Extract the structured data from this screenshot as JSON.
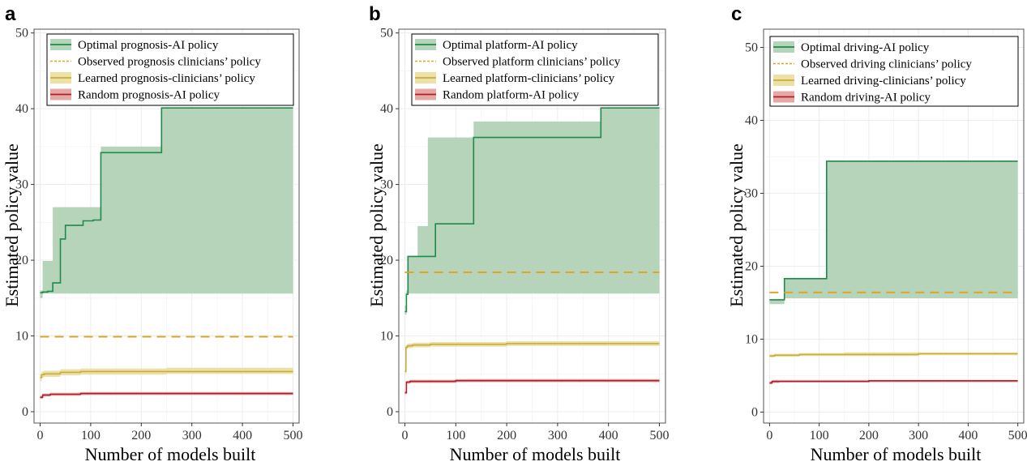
{
  "figure": {
    "colors": {
      "optimal_line": "#1e8a4c",
      "optimal_band": "#b5d4b9",
      "observed": "#e0a526",
      "learned_line": "#c8ad3c",
      "learned_band": "#ece0a6",
      "random_line": "#b0202a",
      "random_band": "#e6a8a4",
      "grid": "#ececec",
      "frame": "#555555"
    }
  },
  "chart_data": [
    {
      "type": "line",
      "panel_label": "a",
      "xlabel": "Number of models built",
      "ylabel": "Estimated policy value",
      "xlim": [
        -12,
        512
      ],
      "ylim": [
        -1.5,
        50.5
      ],
      "x_ticks": [
        0,
        100,
        200,
        300,
        400,
        500
      ],
      "y_ticks": [
        0,
        10,
        20,
        30,
        40,
        50
      ],
      "grid": true,
      "legend_position": "top-left",
      "series": [
        {
          "name": "Optimal prognosis-AI policy",
          "kind": "step_band",
          "x": [
            0,
            5,
            15,
            25,
            40,
            50,
            85,
            105,
            120,
            240,
            500
          ],
          "y": [
            15.7,
            15.8,
            15.9,
            17.0,
            22.8,
            24.6,
            25.2,
            25.3,
            34.2,
            40.1,
            40.1
          ],
          "upper": [
            16.0,
            19.9,
            19.9,
            27.0,
            27.0,
            27.0,
            27.0,
            27.0,
            35.0,
            40.1,
            40.1
          ],
          "lower": [
            15.0,
            15.6,
            15.6,
            15.6,
            15.6,
            15.6,
            15.6,
            15.6,
            15.6,
            15.6,
            15.6
          ]
        },
        {
          "name": "Observed prognosis clinicians’ policy",
          "kind": "dashed",
          "x": [
            0,
            500
          ],
          "y": [
            9.9,
            9.9
          ]
        },
        {
          "name": "Learned prognosis-clinicians’ policy",
          "kind": "step_band",
          "x": [
            0,
            3,
            8,
            40,
            80,
            250,
            500
          ],
          "y": [
            4.5,
            4.9,
            5.0,
            5.2,
            5.3,
            5.3,
            5.3
          ],
          "upper": [
            5.0,
            5.3,
            5.4,
            5.6,
            5.7,
            5.8,
            5.8
          ],
          "lower": [
            4.0,
            4.5,
            4.6,
            4.8,
            4.9,
            5.0,
            5.0
          ]
        },
        {
          "name": "Random prognosis-AI policy",
          "kind": "step_band",
          "x": [
            0,
            5,
            20,
            80,
            500
          ],
          "y": [
            1.9,
            2.2,
            2.3,
            2.4,
            2.4
          ],
          "upper": [
            2.1,
            2.4,
            2.5,
            2.6,
            2.6
          ],
          "lower": [
            1.7,
            2.0,
            2.1,
            2.2,
            2.2
          ]
        }
      ]
    },
    {
      "type": "line",
      "panel_label": "b",
      "xlabel": "Number of models built",
      "ylabel": "Estimated policy value",
      "xlim": [
        -12,
        512
      ],
      "ylim": [
        -1.5,
        50.5
      ],
      "x_ticks": [
        0,
        100,
        200,
        300,
        400,
        500
      ],
      "y_ticks": [
        0,
        10,
        20,
        30,
        40,
        50
      ],
      "grid": true,
      "legend_position": "top-left",
      "series": [
        {
          "name": "Optimal platform-AI policy",
          "kind": "step_band",
          "x": [
            0,
            3,
            6,
            25,
            45,
            60,
            85,
            135,
            385,
            500
          ],
          "y": [
            13.2,
            15.5,
            20.5,
            20.5,
            20.5,
            24.8,
            24.8,
            36.2,
            40.1,
            40.1
          ],
          "upper": [
            14.0,
            16.0,
            20.5,
            24.5,
            36.2,
            36.2,
            36.2,
            38.3,
            40.1,
            40.1
          ],
          "lower": [
            12.8,
            15.6,
            15.6,
            15.6,
            15.6,
            15.6,
            15.6,
            15.6,
            15.6,
            15.6
          ]
        },
        {
          "name": "Observed platform clinicians’ policy",
          "kind": "dashed",
          "x": [
            0,
            500
          ],
          "y": [
            18.4,
            18.4
          ]
        },
        {
          "name": "Learned platform-clinicians’ policy",
          "kind": "step_band",
          "x": [
            0,
            2,
            5,
            15,
            50,
            120,
            200,
            500
          ],
          "y": [
            5.3,
            8.5,
            8.7,
            8.8,
            8.9,
            8.9,
            9.0,
            9.0
          ],
          "upper": [
            5.6,
            8.8,
            9.0,
            9.1,
            9.2,
            9.2,
            9.3,
            9.3
          ],
          "lower": [
            5.0,
            8.2,
            8.4,
            8.5,
            8.6,
            8.6,
            8.7,
            8.7
          ]
        },
        {
          "name": "Random platform-AI policy",
          "kind": "step_band",
          "x": [
            0,
            3,
            10,
            100,
            500
          ],
          "y": [
            2.5,
            3.9,
            4.0,
            4.1,
            4.1
          ],
          "upper": [
            2.7,
            4.1,
            4.2,
            4.3,
            4.3
          ],
          "lower": [
            2.3,
            3.7,
            3.8,
            3.9,
            3.9
          ]
        }
      ]
    },
    {
      "type": "line",
      "panel_label": "c",
      "xlabel": "Number of models built",
      "ylabel": "Estimated policy value",
      "xlim": [
        -12,
        512
      ],
      "ylim": [
        -1.5,
        52.5
      ],
      "x_ticks": [
        0,
        100,
        200,
        300,
        400,
        500
      ],
      "y_ticks": [
        0,
        10,
        20,
        30,
        40,
        50
      ],
      "grid": true,
      "legend_position": "top-left",
      "series": [
        {
          "name": "Optimal driving-AI policy",
          "kind": "step_band",
          "x": [
            0,
            30,
            115,
            500
          ],
          "y": [
            15.4,
            18.3,
            34.4,
            34.4
          ],
          "upper": [
            15.4,
            18.3,
            34.4,
            34.4
          ],
          "lower": [
            14.8,
            15.6,
            15.6,
            15.6
          ]
        },
        {
          "name": "Observed driving clinicians’ policy",
          "kind": "dashed",
          "x": [
            0,
            500
          ],
          "y": [
            16.4,
            16.4
          ]
        },
        {
          "name": "Learned driving-clinicians’ policy",
          "kind": "step_band",
          "x": [
            0,
            10,
            60,
            150,
            300,
            500
          ],
          "y": [
            7.7,
            7.8,
            7.9,
            7.9,
            8.0,
            8.0
          ],
          "upper": [
            7.9,
            8.0,
            8.1,
            8.2,
            8.2,
            8.2
          ],
          "lower": [
            7.5,
            7.6,
            7.7,
            7.7,
            7.8,
            7.8
          ]
        },
        {
          "name": "Random driving-AI policy",
          "kind": "step_band",
          "x": [
            0,
            5,
            20,
            200,
            500
          ],
          "y": [
            4.0,
            4.2,
            4.2,
            4.3,
            4.3
          ],
          "upper": [
            4.2,
            4.4,
            4.4,
            4.4,
            4.4
          ],
          "lower": [
            3.8,
            4.0,
            4.1,
            4.1,
            4.1
          ]
        }
      ]
    }
  ]
}
